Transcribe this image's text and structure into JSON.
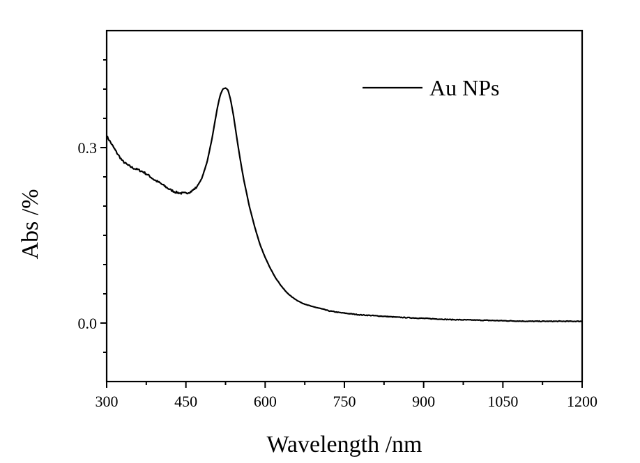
{
  "chart_data": {
    "type": "line",
    "title": "",
    "xlabel": "Wavelength /nm",
    "ylabel": "Abs /%",
    "xlim": [
      300,
      1200
    ],
    "ylim": [
      -0.1,
      0.5
    ],
    "x_ticks": [
      300,
      450,
      600,
      750,
      900,
      1050,
      1200
    ],
    "x_tick_labels": [
      "300",
      "450",
      "600",
      "750",
      "900",
      "1050",
      "1200"
    ],
    "y_ticks": [
      0.0,
      0.3
    ],
    "y_tick_labels": [
      "0.0",
      "0.3"
    ],
    "y_minor_ticks": [
      -0.05,
      0.05,
      0.1,
      0.15,
      0.2,
      0.25,
      0.35,
      0.4,
      0.45
    ],
    "grid": false,
    "legend_position": "top-right",
    "series": [
      {
        "name": "Au NPs",
        "color": "#000000",
        "x": [
          300,
          310,
          320,
          330,
          340,
          350,
          360,
          370,
          380,
          390,
          400,
          410,
          420,
          430,
          440,
          450,
          460,
          470,
          480,
          490,
          500,
          505,
          510,
          515,
          520,
          525,
          530,
          535,
          540,
          545,
          550,
          555,
          560,
          570,
          580,
          590,
          600,
          610,
          620,
          630,
          640,
          650,
          660,
          670,
          680,
          690,
          700,
          720,
          740,
          760,
          780,
          800,
          850,
          900,
          950,
          1000,
          1050,
          1100,
          1150,
          1200
        ],
        "y": [
          0.32,
          0.305,
          0.29,
          0.277,
          0.27,
          0.265,
          0.262,
          0.258,
          0.252,
          0.245,
          0.24,
          0.234,
          0.228,
          0.224,
          0.222,
          0.222,
          0.225,
          0.232,
          0.247,
          0.275,
          0.318,
          0.345,
          0.37,
          0.39,
          0.4,
          0.402,
          0.398,
          0.38,
          0.355,
          0.325,
          0.295,
          0.268,
          0.243,
          0.2,
          0.165,
          0.135,
          0.112,
          0.093,
          0.077,
          0.064,
          0.053,
          0.045,
          0.039,
          0.034,
          0.031,
          0.028,
          0.026,
          0.021,
          0.018,
          0.016,
          0.014,
          0.013,
          0.01,
          0.008,
          0.006,
          0.005,
          0.004,
          0.003,
          0.003,
          0.003
        ]
      }
    ]
  }
}
